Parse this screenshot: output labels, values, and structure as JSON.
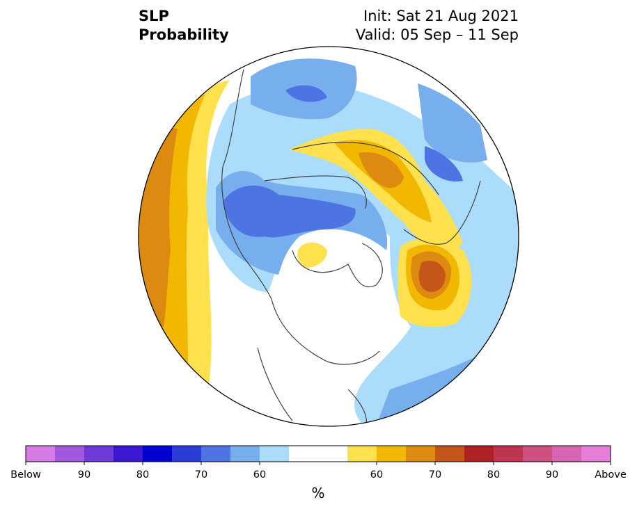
{
  "title": {
    "variable": "SLP",
    "product": "Probability",
    "init": "Init: Sat 21 Aug 2021",
    "valid": "Valid: 05 Sep – 11 Sep"
  },
  "colorbar": {
    "unit": "%",
    "colors": [
      "#d67ae6",
      "#a257de",
      "#6e3bd8",
      "#3d18d3",
      "#0000d3",
      "#2a3dd7",
      "#4e74e4",
      "#77aeee",
      "#acdcfb",
      "#ffffff",
      "#ffe04d",
      "#f2b700",
      "#dc8b10",
      "#c4561a",
      "#ae2224",
      "#bf3550",
      "#cc5080",
      "#d865b4",
      "#e57ed9"
    ],
    "tick_labels": [
      "Below",
      "90",
      "80",
      "70",
      "60",
      "60",
      "70",
      "80",
      "90",
      "Above"
    ]
  },
  "map": {
    "projection": "north polar stereographic",
    "field": "sea level pressure tercile probability",
    "regions": [
      {
        "name": "north-pacific-above",
        "category": "above",
        "max_level": "70"
      },
      {
        "name": "arctic-below",
        "category": "below",
        "max_level": "70"
      },
      {
        "name": "siberia-below",
        "category": "below",
        "max_level": "70"
      },
      {
        "name": "europe-above",
        "category": "above",
        "max_level": "70"
      },
      {
        "name": "west-asia-above",
        "category": "above",
        "max_level": "70"
      },
      {
        "name": "atlantic-above",
        "category": "above",
        "max_level": "70"
      },
      {
        "name": "hudson-bay-above",
        "category": "above",
        "max_level": "60"
      },
      {
        "name": "greenland-below",
        "category": "below",
        "max_level": "65"
      }
    ]
  }
}
